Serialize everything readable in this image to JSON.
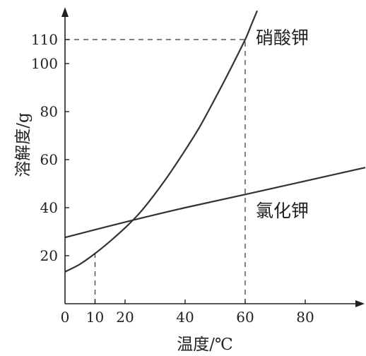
{
  "chart_data": {
    "type": "line",
    "xlabel": "温度/℃",
    "ylabel": "溶解度/g",
    "xlim": [
      0,
      100
    ],
    "ylim": [
      0,
      120
    ],
    "x_ticks": [
      {
        "value": 0,
        "label": "0"
      },
      {
        "value": 10,
        "label": "10"
      },
      {
        "value": 20,
        "label": "20"
      },
      {
        "value": 40,
        "label": "40"
      },
      {
        "value": 60,
        "label": "60"
      },
      {
        "value": 80,
        "label": "80"
      }
    ],
    "y_ticks": [
      {
        "value": 20,
        "label": "20"
      },
      {
        "value": 40,
        "label": "40"
      },
      {
        "value": 60,
        "label": "60"
      },
      {
        "value": 80,
        "label": "80"
      },
      {
        "value": 100,
        "label": "100"
      },
      {
        "value": 110,
        "label": "110"
      }
    ],
    "series": [
      {
        "name": "硝酸钾",
        "x": [
          0,
          5,
          10,
          15,
          20,
          25,
          30,
          35,
          40,
          45,
          50,
          55,
          60,
          62,
          64
        ],
        "y": [
          13.3,
          16.5,
          20.9,
          26.0,
          31.6,
          38.0,
          45.8,
          54.5,
          63.9,
          74.0,
          85.5,
          97.5,
          110,
          116,
          122
        ]
      },
      {
        "name": "氯化钾",
        "x": [
          0,
          20,
          40,
          60,
          80,
          100
        ],
        "y": [
          27.6,
          34.0,
          40.0,
          45.5,
          51.1,
          56.7
        ]
      }
    ],
    "reference_lines": [
      {
        "from": [
          0,
          110
        ],
        "to": [
          60,
          110
        ]
      },
      {
        "from": [
          60,
          0
        ],
        "to": [
          60,
          110
        ]
      },
      {
        "from": [
          10,
          0
        ],
        "to": [
          10,
          20.9
        ]
      }
    ],
    "grid": false,
    "legend": "none"
  }
}
